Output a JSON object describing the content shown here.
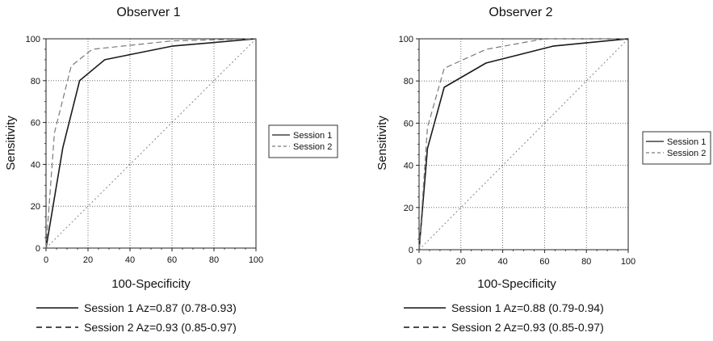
{
  "chart_data": [
    {
      "type": "line",
      "title": "Observer 1",
      "xlabel": "100-Specificity",
      "ylabel": "Sensitivity",
      "xlim": [
        0,
        100
      ],
      "ylim": [
        0,
        100
      ],
      "x_ticks": [
        "0",
        "20",
        "40",
        "60",
        "80",
        "100"
      ],
      "y_ticks": [
        "0",
        "20",
        "40",
        "60",
        "80",
        "100"
      ],
      "grid": true,
      "legend": {
        "placement": "right",
        "entries": [
          "Session 1",
          "Session 2"
        ]
      },
      "series": [
        {
          "name": "Session 1",
          "style": "solid",
          "points": [
            [
              0,
              0
            ],
            [
              8,
              48
            ],
            [
              16,
              80
            ],
            [
              28,
              90
            ],
            [
              60,
              96.5
            ],
            [
              100,
              100
            ]
          ]
        },
        {
          "name": "Session 2",
          "style": "dashed",
          "points": [
            [
              0,
              0
            ],
            [
              4,
              55
            ],
            [
              12,
              87
            ],
            [
              22,
              95
            ],
            [
              60,
              99
            ],
            [
              100,
              100
            ]
          ]
        },
        {
          "name": "",
          "style": "reference",
          "points": [
            [
              0,
              0
            ],
            [
              100,
              100
            ]
          ]
        }
      ],
      "annotations": [
        {
          "style": "solid",
          "text": "Session 1 Az=0.87 (0.78-0.93)"
        },
        {
          "style": "dashed",
          "text": "Session 2 Az=0.93 (0.85-0.97)"
        }
      ]
    },
    {
      "type": "line",
      "title": "Observer 2",
      "xlabel": "100-Specificity",
      "ylabel": "Sensitivity",
      "xlim": [
        0,
        100
      ],
      "ylim": [
        0,
        100
      ],
      "x_ticks": [
        "0",
        "20",
        "40",
        "60",
        "80",
        "100"
      ],
      "y_ticks": [
        "0",
        "20",
        "40",
        "60",
        "80",
        "100"
      ],
      "grid": true,
      "legend": {
        "placement": "right",
        "entries": [
          "Session 1",
          "Session 2"
        ]
      },
      "series": [
        {
          "name": "Session 1",
          "style": "solid",
          "points": [
            [
              0,
              0
            ],
            [
              4,
              48
            ],
            [
              12,
              77
            ],
            [
              32,
              88.5
            ],
            [
              64,
              96.5
            ],
            [
              100,
              100
            ]
          ]
        },
        {
          "name": "Session 2",
          "style": "dashed",
          "points": [
            [
              0,
              0
            ],
            [
              4,
              58
            ],
            [
              12,
              86
            ],
            [
              32,
              95
            ],
            [
              60,
              100
            ],
            [
              100,
              100
            ]
          ]
        },
        {
          "name": "",
          "style": "reference",
          "points": [
            [
              0,
              0
            ],
            [
              100,
              100
            ]
          ]
        }
      ],
      "annotations": [
        {
          "style": "solid",
          "text": "Session 1 Az=0.88 (0.79-0.94)"
        },
        {
          "style": "dashed",
          "text": "Session 2 Az=0.93 (0.85-0.97)"
        }
      ]
    }
  ],
  "colors": {
    "session1": "#1a1a1a",
    "session2": "#7a7a7a",
    "grid": "#555555",
    "reference": "#777777"
  }
}
